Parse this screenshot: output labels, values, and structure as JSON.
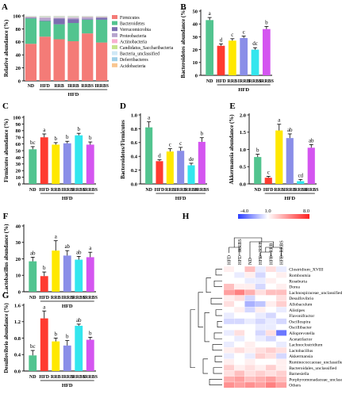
{
  "figure": {
    "panel_letters": [
      "A",
      "B",
      "C",
      "D",
      "E",
      "F",
      "G",
      "H"
    ],
    "group_label": "HFD"
  },
  "heatmap_legend": {
    "min": "-4.0",
    "mid": "1.0",
    "max": "8.0"
  },
  "chart_data": [
    {
      "panel": "A",
      "type": "bar",
      "stacked": true,
      "categories": [
        "ND",
        "HFD",
        "RRB",
        "IRRB",
        "RRBS",
        "IRRBS"
      ],
      "xlabel": "",
      "group_label": "HFD",
      "ylabel": "Relative abundance (%)",
      "ylim": [
        0,
        100
      ],
      "yticks": [
        0,
        20,
        40,
        60,
        80,
        100
      ],
      "legend_position": "right",
      "series": [
        {
          "name": "Firmicutes",
          "color": "#f47b77",
          "values": [
            57,
            68,
            64,
            61,
            73,
            59
          ]
        },
        {
          "name": "Bacteroidetes",
          "color": "#52c48f",
          "values": [
            39,
            24,
            23,
            28,
            21,
            35
          ]
        },
        {
          "name": "Verrucomicrobia",
          "color": "#7c6fb1",
          "values": [
            1,
            1,
            9,
            6,
            1,
            3
          ]
        },
        {
          "name": "Proteobacteria",
          "color": "#b6a4ce",
          "values": [
            1,
            4,
            1,
            2,
            3,
            1
          ]
        },
        {
          "name": "Actinobacteria",
          "color": "#f8aed0",
          "values": [
            0.5,
            0.5,
            0.5,
            0.5,
            0.5,
            0.5
          ]
        },
        {
          "name": "Candidatus_Saccharibacteria",
          "color": "#c5e48e",
          "values": [
            0.5,
            0.5,
            0.5,
            0.5,
            0.5,
            0.5
          ]
        },
        {
          "name": "Bacteria_unclassified",
          "color": "#cfe8f6",
          "values": [
            0.5,
            1,
            1,
            1,
            0.5,
            0.5
          ]
        },
        {
          "name": "Deferribacteres",
          "color": "#9ecfe8",
          "values": [
            0.3,
            0.5,
            0.5,
            0.5,
            0.3,
            0.3
          ]
        },
        {
          "name": "Acidobacteria",
          "color": "#f9c691",
          "values": [
            0.2,
            0.5,
            0.5,
            0.5,
            0.2,
            0.2
          ]
        }
      ]
    },
    {
      "panel": "B",
      "type": "bar",
      "categories": [
        "ND",
        "HFD",
        "RRB",
        "IRRB",
        "RRBS",
        "IRRBS"
      ],
      "values": [
        43,
        23,
        27,
        29,
        20,
        36
      ],
      "errors": [
        2,
        1.5,
        1.5,
        1.5,
        1.5,
        2
      ],
      "letters": [
        "a",
        "d",
        "c",
        "c",
        "dc",
        "b"
      ],
      "colors": [
        "#52c48f",
        "#ff3b30",
        "#ffe800",
        "#8a8ee8",
        "#33e6ee",
        "#d455f0"
      ],
      "ylabel": "Bacteroidetes abundance (%)",
      "ylim": [
        0,
        50
      ],
      "yticks": [
        0,
        10,
        20,
        30,
        40,
        50
      ],
      "group_label": "HFD"
    },
    {
      "panel": "C",
      "type": "bar",
      "categories": [
        "ND",
        "HFD",
        "RRB",
        "IRRB",
        "RRBS",
        "IRRBS"
      ],
      "values": [
        52,
        70,
        59,
        61,
        73,
        59
      ],
      "errors": [
        4,
        5,
        3,
        3,
        3,
        4
      ],
      "letters": [
        "bc",
        "a",
        "b",
        "b",
        "b",
        "b"
      ],
      "colors": [
        "#52c48f",
        "#ff3b30",
        "#ffe800",
        "#8a8ee8",
        "#33e6ee",
        "#d455f0"
      ],
      "ylabel": "Firmicutes abundance (%)",
      "ylim": [
        0,
        100
      ],
      "yticks": [
        0,
        10,
        20,
        30,
        40,
        50,
        60,
        70,
        80,
        90,
        100
      ],
      "group_label": "HFD"
    },
    {
      "panel": "D",
      "type": "bar",
      "categories": [
        "ND",
        "HFD",
        "RRB",
        "IRRB",
        "RRBS",
        "IRRBS"
      ],
      "values": [
        0.82,
        0.33,
        0.47,
        0.48,
        0.27,
        0.61
      ],
      "errors": [
        0.08,
        0.02,
        0.04,
        0.05,
        0.03,
        0.06
      ],
      "letters": [
        "a",
        "d",
        "c",
        "c",
        "de",
        "b"
      ],
      "colors": [
        "#52c48f",
        "#ff3b30",
        "#ffe800",
        "#8a8ee8",
        "#33e6ee",
        "#d455f0"
      ],
      "ylabel": "Bacteroidetes/Firmicutes",
      "ylim": [
        0,
        1.0
      ],
      "yticks": [
        0.0,
        0.2,
        0.4,
        0.6,
        0.8,
        1.0
      ],
      "group_label": "HFD"
    },
    {
      "panel": "E",
      "type": "bar",
      "categories": [
        "ND",
        "HFD",
        "RRB",
        "IRRB",
        "RRBS",
        "IRRBS"
      ],
      "values": [
        0.78,
        0.18,
        1.55,
        1.33,
        0.08,
        1.05
      ],
      "errors": [
        0.08,
        0.04,
        0.18,
        0.12,
        0.05,
        0.09
      ],
      "letters": [
        "b",
        "c",
        "a",
        "ab",
        "cd",
        "ab"
      ],
      "colors": [
        "#52c48f",
        "#ff3b30",
        "#ffe800",
        "#8a8ee8",
        "#33e6ee",
        "#d455f0"
      ],
      "ylabel": "Akkermansia abundance (%)",
      "ylim": [
        0,
        2.0
      ],
      "yticks": [
        0.0,
        0.5,
        1.0,
        1.5,
        2.0
      ],
      "group_label": "HFD"
    },
    {
      "panel": "F",
      "type": "bar",
      "categories": [
        "ND",
        "HFD",
        "RRB",
        "IRRB",
        "RRBS",
        "IRRBS"
      ],
      "values": [
        18.5,
        9.5,
        25,
        22,
        19.5,
        21
      ],
      "errors": [
        2.5,
        2.5,
        6,
        3,
        2,
        3
      ],
      "letters": [
        "ab",
        "b",
        "a",
        "ab",
        "ab",
        "a"
      ],
      "colors": [
        "#52c48f",
        "#ff3b30",
        "#ffe800",
        "#8a8ee8",
        "#33e6ee",
        "#d455f0"
      ],
      "ylabel": "Lactobacillus abundance (%)",
      "ylim": [
        0,
        40
      ],
      "yticks": [
        0,
        10,
        20,
        30,
        40
      ],
      "group_label": "HFD"
    },
    {
      "panel": "G",
      "type": "bar",
      "categories": [
        "ND",
        "HFD",
        "RRB",
        "IRRB",
        "RRBS",
        "IRRBS"
      ],
      "values": [
        0.38,
        1.28,
        0.72,
        0.62,
        1.1,
        0.76
      ],
      "errors": [
        0.12,
        0.18,
        0.08,
        0.12,
        0.04,
        0.06
      ],
      "letters": [
        "bc",
        "a",
        "b",
        "b",
        "ab",
        "b"
      ],
      "colors": [
        "#52c48f",
        "#ff3b30",
        "#ffe800",
        "#8a8ee8",
        "#33e6ee",
        "#d455f0"
      ],
      "ylabel": "Desulfovibrio abundance (%)",
      "ylim": [
        0,
        1.6
      ],
      "yticks": [
        0.0,
        0.4,
        0.8,
        1.2,
        1.6
      ],
      "group_label": "HFD"
    },
    {
      "panel": "H",
      "type": "heatmap",
      "columns": [
        "HFD",
        "HFD+IRRBS",
        "ND",
        "HFD+IRRB",
        "HFD+RRB",
        "HFD+RRBS"
      ],
      "rows": [
        "Clostridium_XVIII",
        "Romboutsia",
        "Roseburia",
        "Dorea",
        "Lachnospiraceae_unclassified",
        "Desulfovibrio",
        "Allobaculum",
        "Alistipes",
        "Flavonifractor",
        "Oscillospira",
        "Oscillibacter",
        "Alloprevotella",
        "Acetatifactor",
        "Lachnoclostridium",
        "Lactobacillus",
        "Akkermansia",
        "Ruminococcaceae_unclassified",
        "Bacteroidales_unclassified",
        "Barnesiella",
        "Porphyromonadaceae_unclassified",
        "Others"
      ],
      "color_scale": {
        "min": -4.0,
        "mid": 1.0,
        "max": 8.0,
        "low": "#2b3dff",
        "midc": "#ffffff",
        "high": "#ff2020"
      },
      "values": [
        [
          1.5,
          1.0,
          3.0,
          0.5,
          2.0,
          0.5
        ],
        [
          1.0,
          0.5,
          1.5,
          0.0,
          1.0,
          1.5
        ],
        [
          1.0,
          1.0,
          0.5,
          0.5,
          1.5,
          1.0
        ],
        [
          3.0,
          1.5,
          1.5,
          0.0,
          1.0,
          1.5
        ],
        [
          4.0,
          5.0,
          3.5,
          2.0,
          3.0,
          3.0
        ],
        [
          1.5,
          2.0,
          0.0,
          1.0,
          1.0,
          2.0
        ],
        [
          2.0,
          1.0,
          -1.0,
          -0.5,
          1.5,
          2.5
        ],
        [
          1.0,
          1.5,
          0.0,
          1.5,
          1.0,
          0.5
        ],
        [
          0.5,
          1.0,
          1.0,
          0.5,
          0.0,
          1.0
        ],
        [
          0.0,
          0.0,
          0.5,
          0.0,
          0.5,
          0.0
        ],
        [
          1.0,
          1.0,
          1.0,
          0.5,
          0.5,
          1.0
        ],
        [
          0.5,
          2.0,
          1.0,
          0.0,
          2.0,
          -2.5
        ],
        [
          1.0,
          0.5,
          1.0,
          0.5,
          0.0,
          1.0
        ],
        [
          0.5,
          1.0,
          1.5,
          1.0,
          1.0,
          0.5
        ],
        [
          1.5,
          2.0,
          1.5,
          2.0,
          2.5,
          2.0
        ],
        [
          0.5,
          1.0,
          0.5,
          2.5,
          2.0,
          0.0
        ],
        [
          1.5,
          1.0,
          1.5,
          1.0,
          1.0,
          1.5
        ],
        [
          2.5,
          1.5,
          2.0,
          1.5,
          2.5,
          1.5
        ],
        [
          2.0,
          3.0,
          2.0,
          2.5,
          2.0,
          2.5
        ],
        [
          3.5,
          4.0,
          3.0,
          3.5,
          4.0,
          3.0
        ],
        [
          4.5,
          4.0,
          4.5,
          4.0,
          5.0,
          4.0
        ]
      ]
    }
  ]
}
